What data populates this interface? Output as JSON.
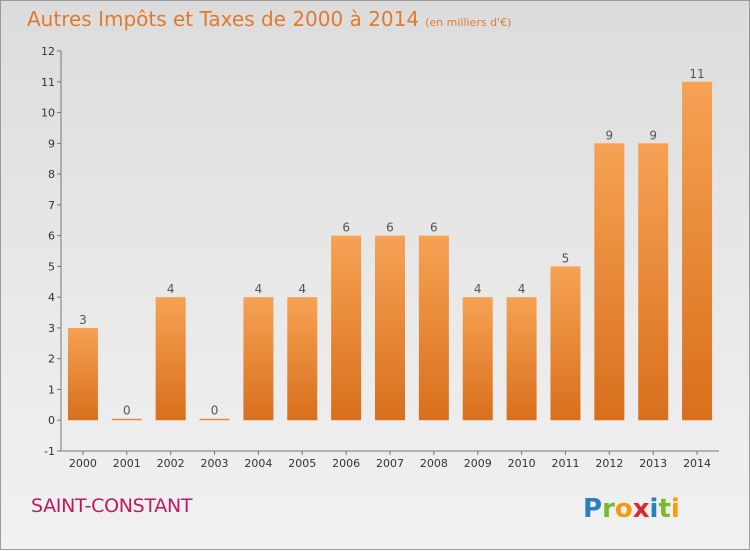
{
  "title": "Autres Impôts et Taxes de 2000 à 2014",
  "subtitle": "(en milliers d'€)",
  "city": "SAINT-CONSTANT",
  "logo_text": "Proxiti",
  "colors": {
    "title": "#e07a2e",
    "city": "#c2185b",
    "bar": "#f0903a"
  },
  "chart_data": {
    "type": "bar",
    "categories": [
      "2000",
      "2001",
      "2002",
      "2003",
      "2004",
      "2005",
      "2006",
      "2007",
      "2008",
      "2009",
      "2010",
      "2011",
      "2012",
      "2013",
      "2014"
    ],
    "values": [
      3,
      0,
      4,
      0,
      4,
      4,
      6,
      6,
      6,
      4,
      4,
      5,
      9,
      9,
      11
    ],
    "ylim": [
      -1,
      12
    ],
    "yticks": [
      -1,
      0,
      1,
      2,
      3,
      4,
      5,
      6,
      7,
      8,
      9,
      10,
      11,
      12
    ],
    "grid": false
  }
}
